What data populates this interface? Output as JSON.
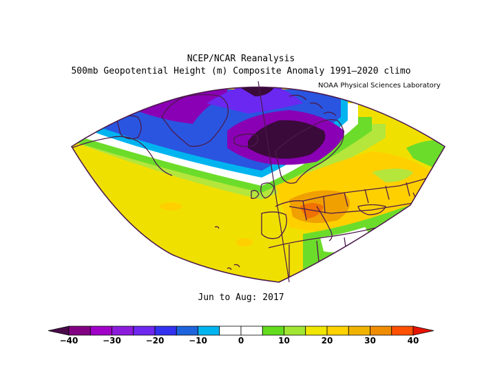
{
  "title_line1": "NCEP/NCAR Reanalysis",
  "title_line2": "500mb Geopotential Height (m) Composite Anomaly 1991–2020 climo",
  "credit": "NOAA Physical Sciences Laboratory",
  "period": "Jun to Aug: 2017",
  "colorbar": {
    "colors": [
      "#4a0a4a",
      "#820082",
      "#a000c8",
      "#8c1cdc",
      "#6e28f0",
      "#3232f0",
      "#1e64dc",
      "#00b4f0",
      "#ffffff",
      "#ffffff",
      "#64dc1e",
      "#a0e632",
      "#f0e600",
      "#ffd200",
      "#f0b400",
      "#f08c00",
      "#ff5000",
      "#e61400"
    ],
    "ticks": [
      "−40",
      "−30",
      "−20",
      "−10",
      "0",
      "10",
      "20",
      "30",
      "40"
    ],
    "min": -40,
    "max": 40,
    "step": 5
  },
  "colors": {
    "coast": "#4b1a4b",
    "strong_neg": "#3a0a3a",
    "purple": "#8a00b4",
    "violet": "#6a28f0",
    "blue": "#2a55e0",
    "cyan": "#00b4f0",
    "green": "#6cdc2a",
    "lime": "#b4e63c",
    "yellow": "#f0e000",
    "gold": "#ffd000",
    "orange": "#f0a000",
    "deep_orange": "#f07000"
  }
}
